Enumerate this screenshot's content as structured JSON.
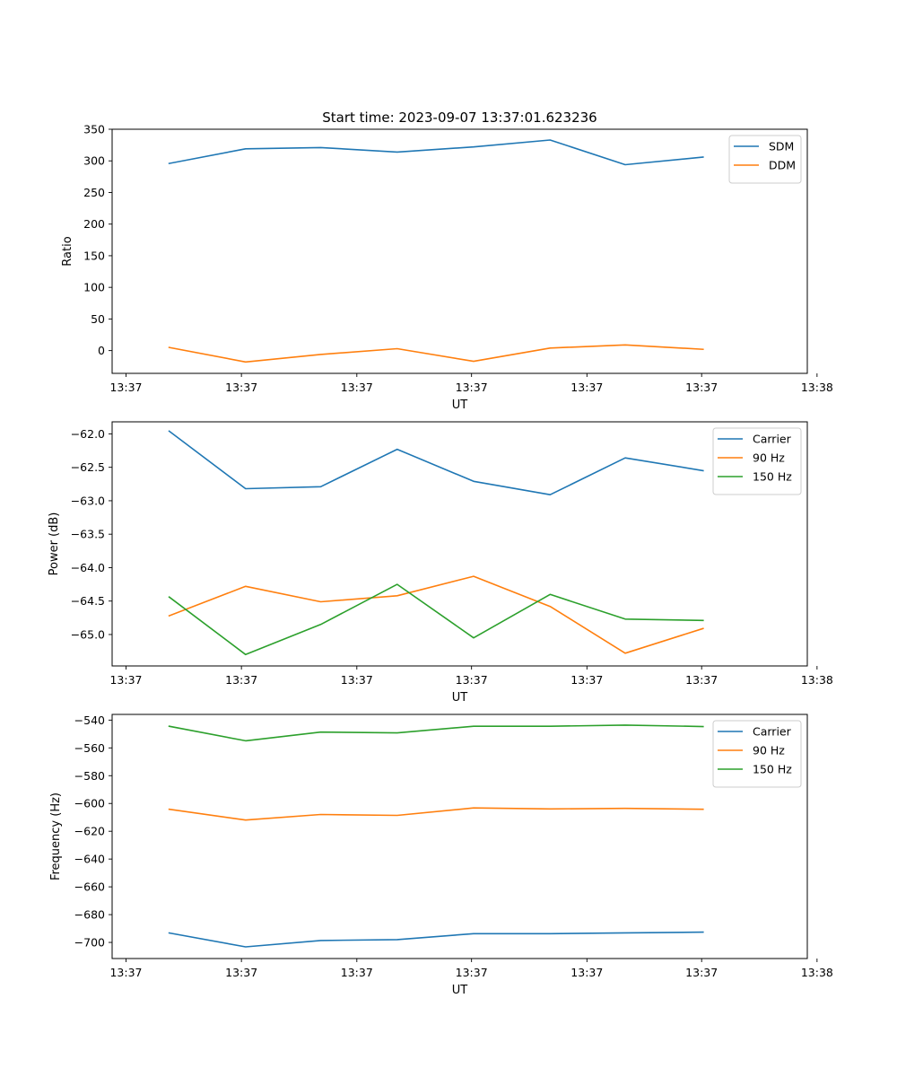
{
  "figure": {
    "title": "Start time: 2023-09-07 13:37:01.623236"
  },
  "colors": {
    "blue": "#1f77b4",
    "orange": "#ff7f0e",
    "green": "#2ca02c"
  },
  "chart_data": [
    {
      "type": "line",
      "title": "Start time: 2023-09-07 13:37:01.623236",
      "xlabel": "UT",
      "ylabel": "Ratio",
      "xlim": [
        0,
        1
      ],
      "x": [
        0.082,
        0.192,
        0.3,
        0.41,
        0.52,
        0.63,
        0.738,
        0.85
      ],
      "xticks": [
        {
          "v": 0.02,
          "label": "13:37"
        },
        {
          "v": 0.186,
          "label": "13:37"
        },
        {
          "v": 0.352,
          "label": "13:37"
        },
        {
          "v": 0.517,
          "label": "13:37"
        },
        {
          "v": 0.683,
          "label": "13:37"
        },
        {
          "v": 0.848,
          "label": "13:37"
        },
        {
          "v": 1.014,
          "label": "13:38"
        }
      ],
      "ylim": [
        -36,
        350
      ],
      "yticks": [
        {
          "v": 0,
          "label": "0"
        },
        {
          "v": 50,
          "label": "50"
        },
        {
          "v": 100,
          "label": "100"
        },
        {
          "v": 150,
          "label": "150"
        },
        {
          "v": 200,
          "label": "200"
        },
        {
          "v": 250,
          "label": "250"
        },
        {
          "v": 300,
          "label": "300"
        },
        {
          "v": 350,
          "label": "350"
        }
      ],
      "legend": "top-right",
      "series": [
        {
          "name": "SDM",
          "color": "#1f77b4",
          "values": [
            296,
            319,
            321,
            314,
            322,
            333,
            294,
            306
          ]
        },
        {
          "name": "DDM",
          "color": "#ff7f0e",
          "values": [
            5,
            -18,
            -6,
            3,
            -17,
            4,
            9,
            2
          ]
        }
      ]
    },
    {
      "type": "line",
      "xlabel": "UT",
      "ylabel": "Power (dB)",
      "xlim": [
        0,
        1
      ],
      "x": [
        0.082,
        0.192,
        0.3,
        0.41,
        0.52,
        0.63,
        0.738,
        0.85
      ],
      "xticks": [
        {
          "v": 0.02,
          "label": "13:37"
        },
        {
          "v": 0.186,
          "label": "13:37"
        },
        {
          "v": 0.352,
          "label": "13:37"
        },
        {
          "v": 0.517,
          "label": "13:37"
        },
        {
          "v": 0.683,
          "label": "13:37"
        },
        {
          "v": 0.848,
          "label": "13:37"
        },
        {
          "v": 1.014,
          "label": "13:38"
        }
      ],
      "ylim": [
        -65.47,
        -61.82
      ],
      "yticks": [
        {
          "v": -62.0,
          "label": "−62.0"
        },
        {
          "v": -62.5,
          "label": "−62.5"
        },
        {
          "v": -63.0,
          "label": "−63.0"
        },
        {
          "v": -63.5,
          "label": "−63.5"
        },
        {
          "v": -64.0,
          "label": "−64.0"
        },
        {
          "v": -64.5,
          "label": "−64.5"
        },
        {
          "v": -65.0,
          "label": "−65.0"
        }
      ],
      "legend": "top-right",
      "series": [
        {
          "name": "Carrier",
          "color": "#1f77b4",
          "values": [
            -61.96,
            -62.82,
            -62.79,
            -62.23,
            -62.71,
            -62.91,
            -62.36,
            -62.55
          ]
        },
        {
          "name": "90 Hz",
          "color": "#ff7f0e",
          "values": [
            -64.72,
            -64.28,
            -64.51,
            -64.42,
            -64.13,
            -64.58,
            -65.28,
            -64.91
          ]
        },
        {
          "name": "150 Hz",
          "color": "#2ca02c",
          "values": [
            -64.44,
            -65.3,
            -64.85,
            -64.25,
            -65.05,
            -64.4,
            -64.77,
            -64.79
          ]
        }
      ]
    },
    {
      "type": "line",
      "xlabel": "UT",
      "ylabel": "Frequency (Hz)",
      "xlim": [
        0,
        1
      ],
      "x": [
        0.082,
        0.192,
        0.3,
        0.41,
        0.52,
        0.63,
        0.738,
        0.85
      ],
      "xticks": [
        {
          "v": 0.02,
          "label": "13:37"
        },
        {
          "v": 0.186,
          "label": "13:37"
        },
        {
          "v": 0.352,
          "label": "13:37"
        },
        {
          "v": 0.517,
          "label": "13:37"
        },
        {
          "v": 0.683,
          "label": "13:37"
        },
        {
          "v": 0.848,
          "label": "13:37"
        },
        {
          "v": 1.014,
          "label": "13:38"
        }
      ],
      "ylim": [
        -711.6,
        -535.9
      ],
      "yticks": [
        {
          "v": -540,
          "label": "−540"
        },
        {
          "v": -560,
          "label": "−560"
        },
        {
          "v": -580,
          "label": "−580"
        },
        {
          "v": -600,
          "label": "−600"
        },
        {
          "v": -620,
          "label": "−620"
        },
        {
          "v": -640,
          "label": "−640"
        },
        {
          "v": -660,
          "label": "−660"
        },
        {
          "v": -680,
          "label": "−680"
        },
        {
          "v": -700,
          "label": "−700"
        }
      ],
      "legend": "top-right",
      "series": [
        {
          "name": "Carrier",
          "color": "#1f77b4",
          "values": [
            -693.2,
            -703.2,
            -698.6,
            -698.0,
            -693.7,
            -693.7,
            -693.1,
            -692.6
          ]
        },
        {
          "name": "90 Hz",
          "color": "#ff7f0e",
          "values": [
            -604.2,
            -611.9,
            -607.9,
            -608.6,
            -603.2,
            -603.9,
            -603.5,
            -604.2
          ]
        },
        {
          "name": "150 Hz",
          "color": "#2ca02c",
          "values": [
            -544.4,
            -554.9,
            -548.6,
            -549.2,
            -544.4,
            -544.4,
            -543.6,
            -544.6
          ]
        }
      ]
    }
  ]
}
